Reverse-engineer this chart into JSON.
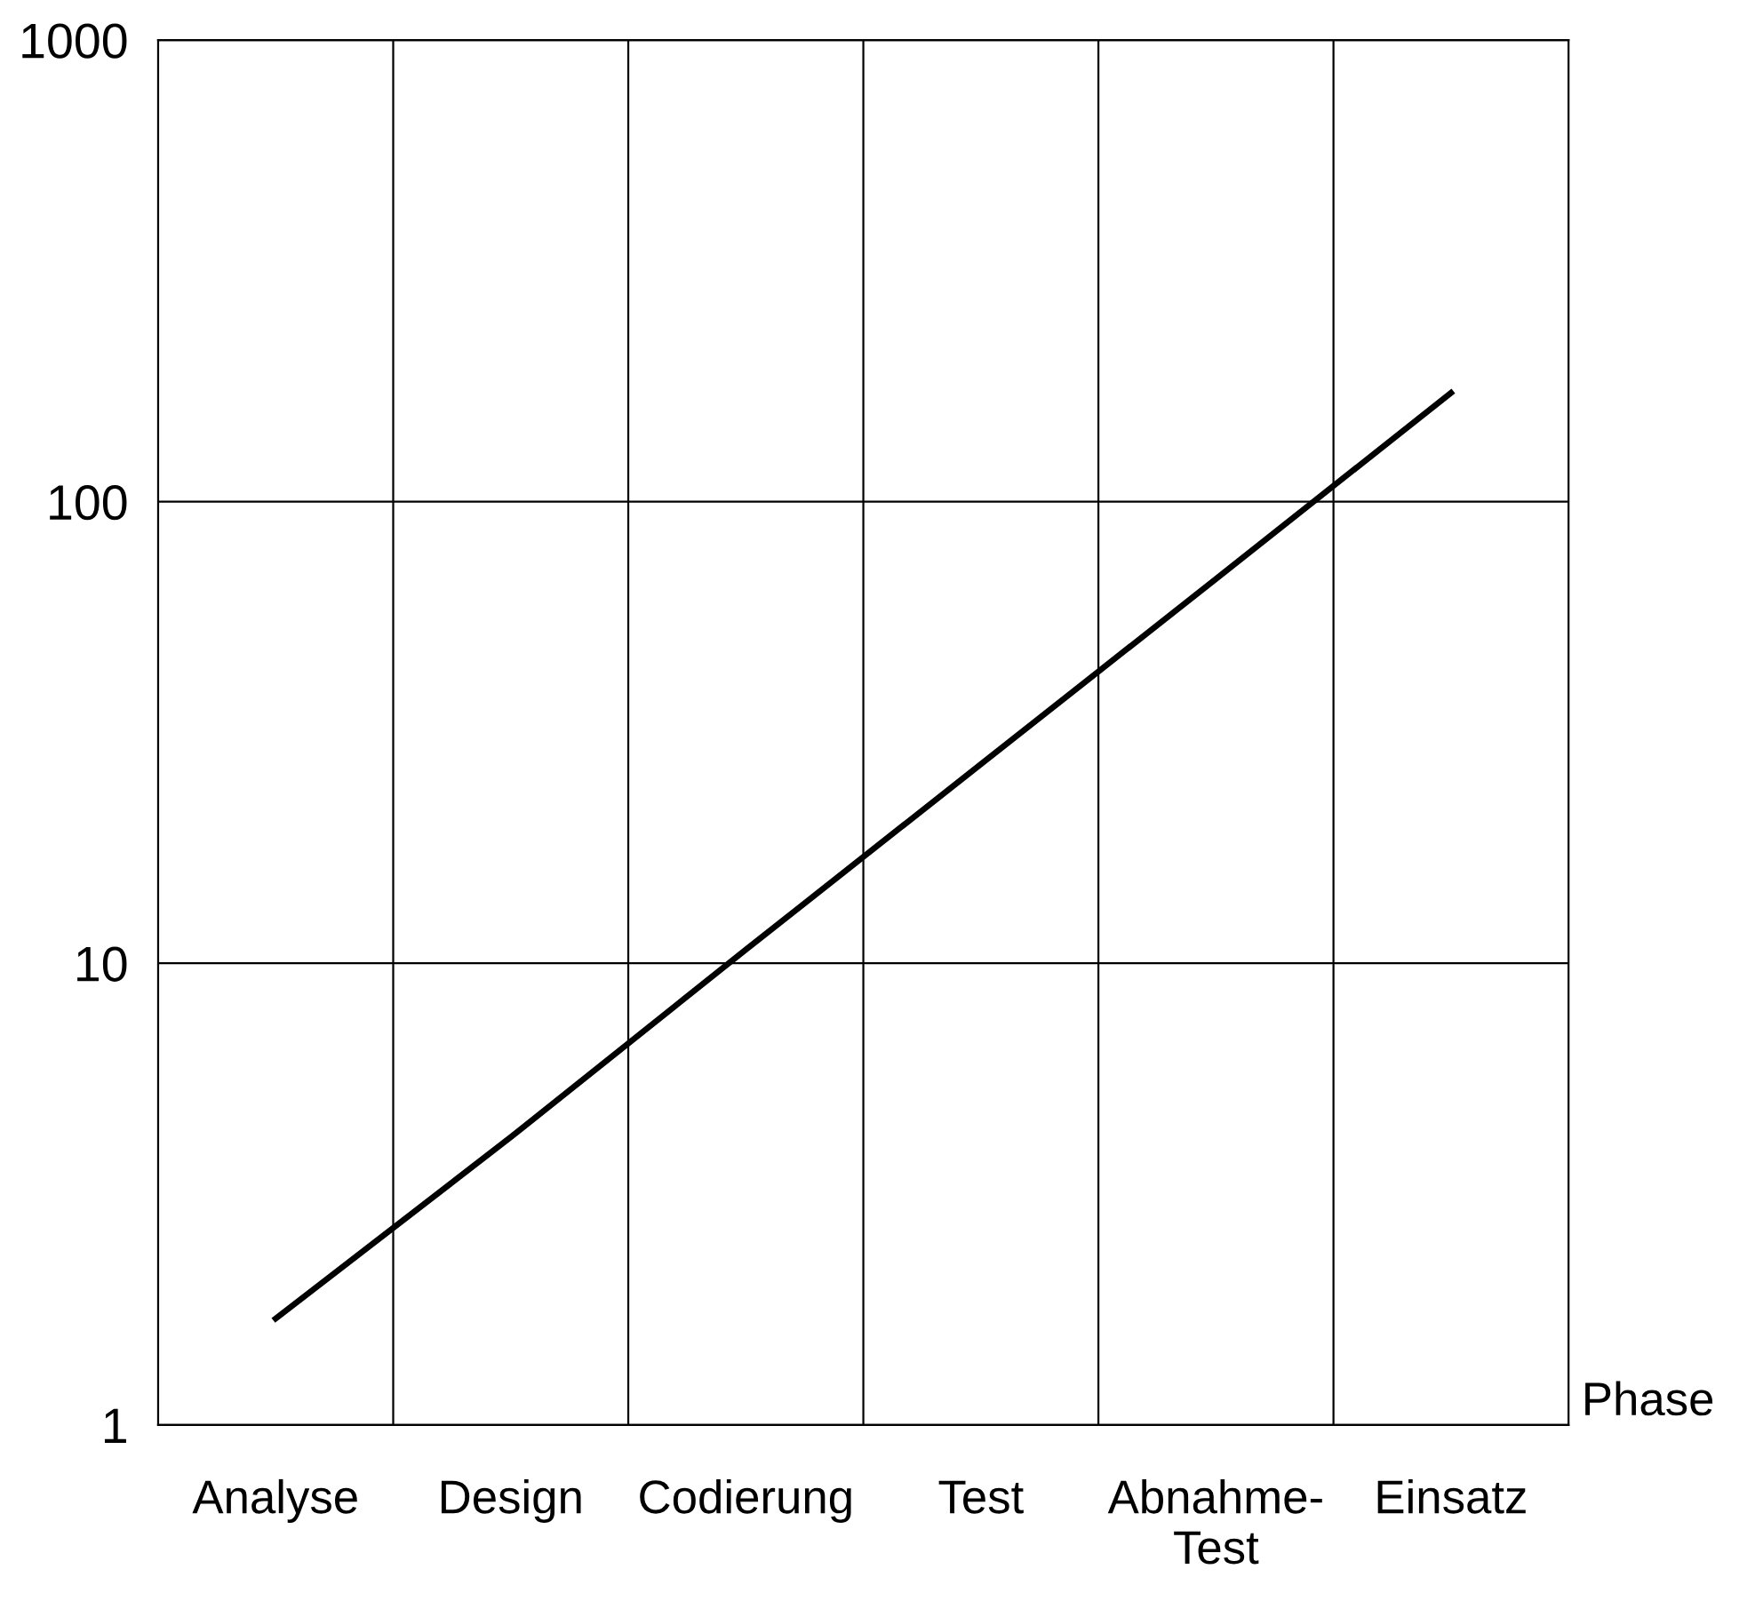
{
  "chart_data": {
    "type": "line",
    "xlabel": "Phase",
    "categories": [
      "Analyse",
      "Design",
      "Codierung",
      "Test",
      "Abnahme-\nTest",
      "Einsatz"
    ],
    "series": [
      {
        "color": "#000000",
        "values": [
          1.7,
          4.2,
          10.7,
          27,
          68,
          172
        ]
      }
    ],
    "log": "y",
    "ylim": [
      1,
      1000
    ],
    "yticks": [
      1,
      10,
      100,
      1000
    ],
    "grid": true,
    "marker": "none",
    "line_style": "solid"
  }
}
